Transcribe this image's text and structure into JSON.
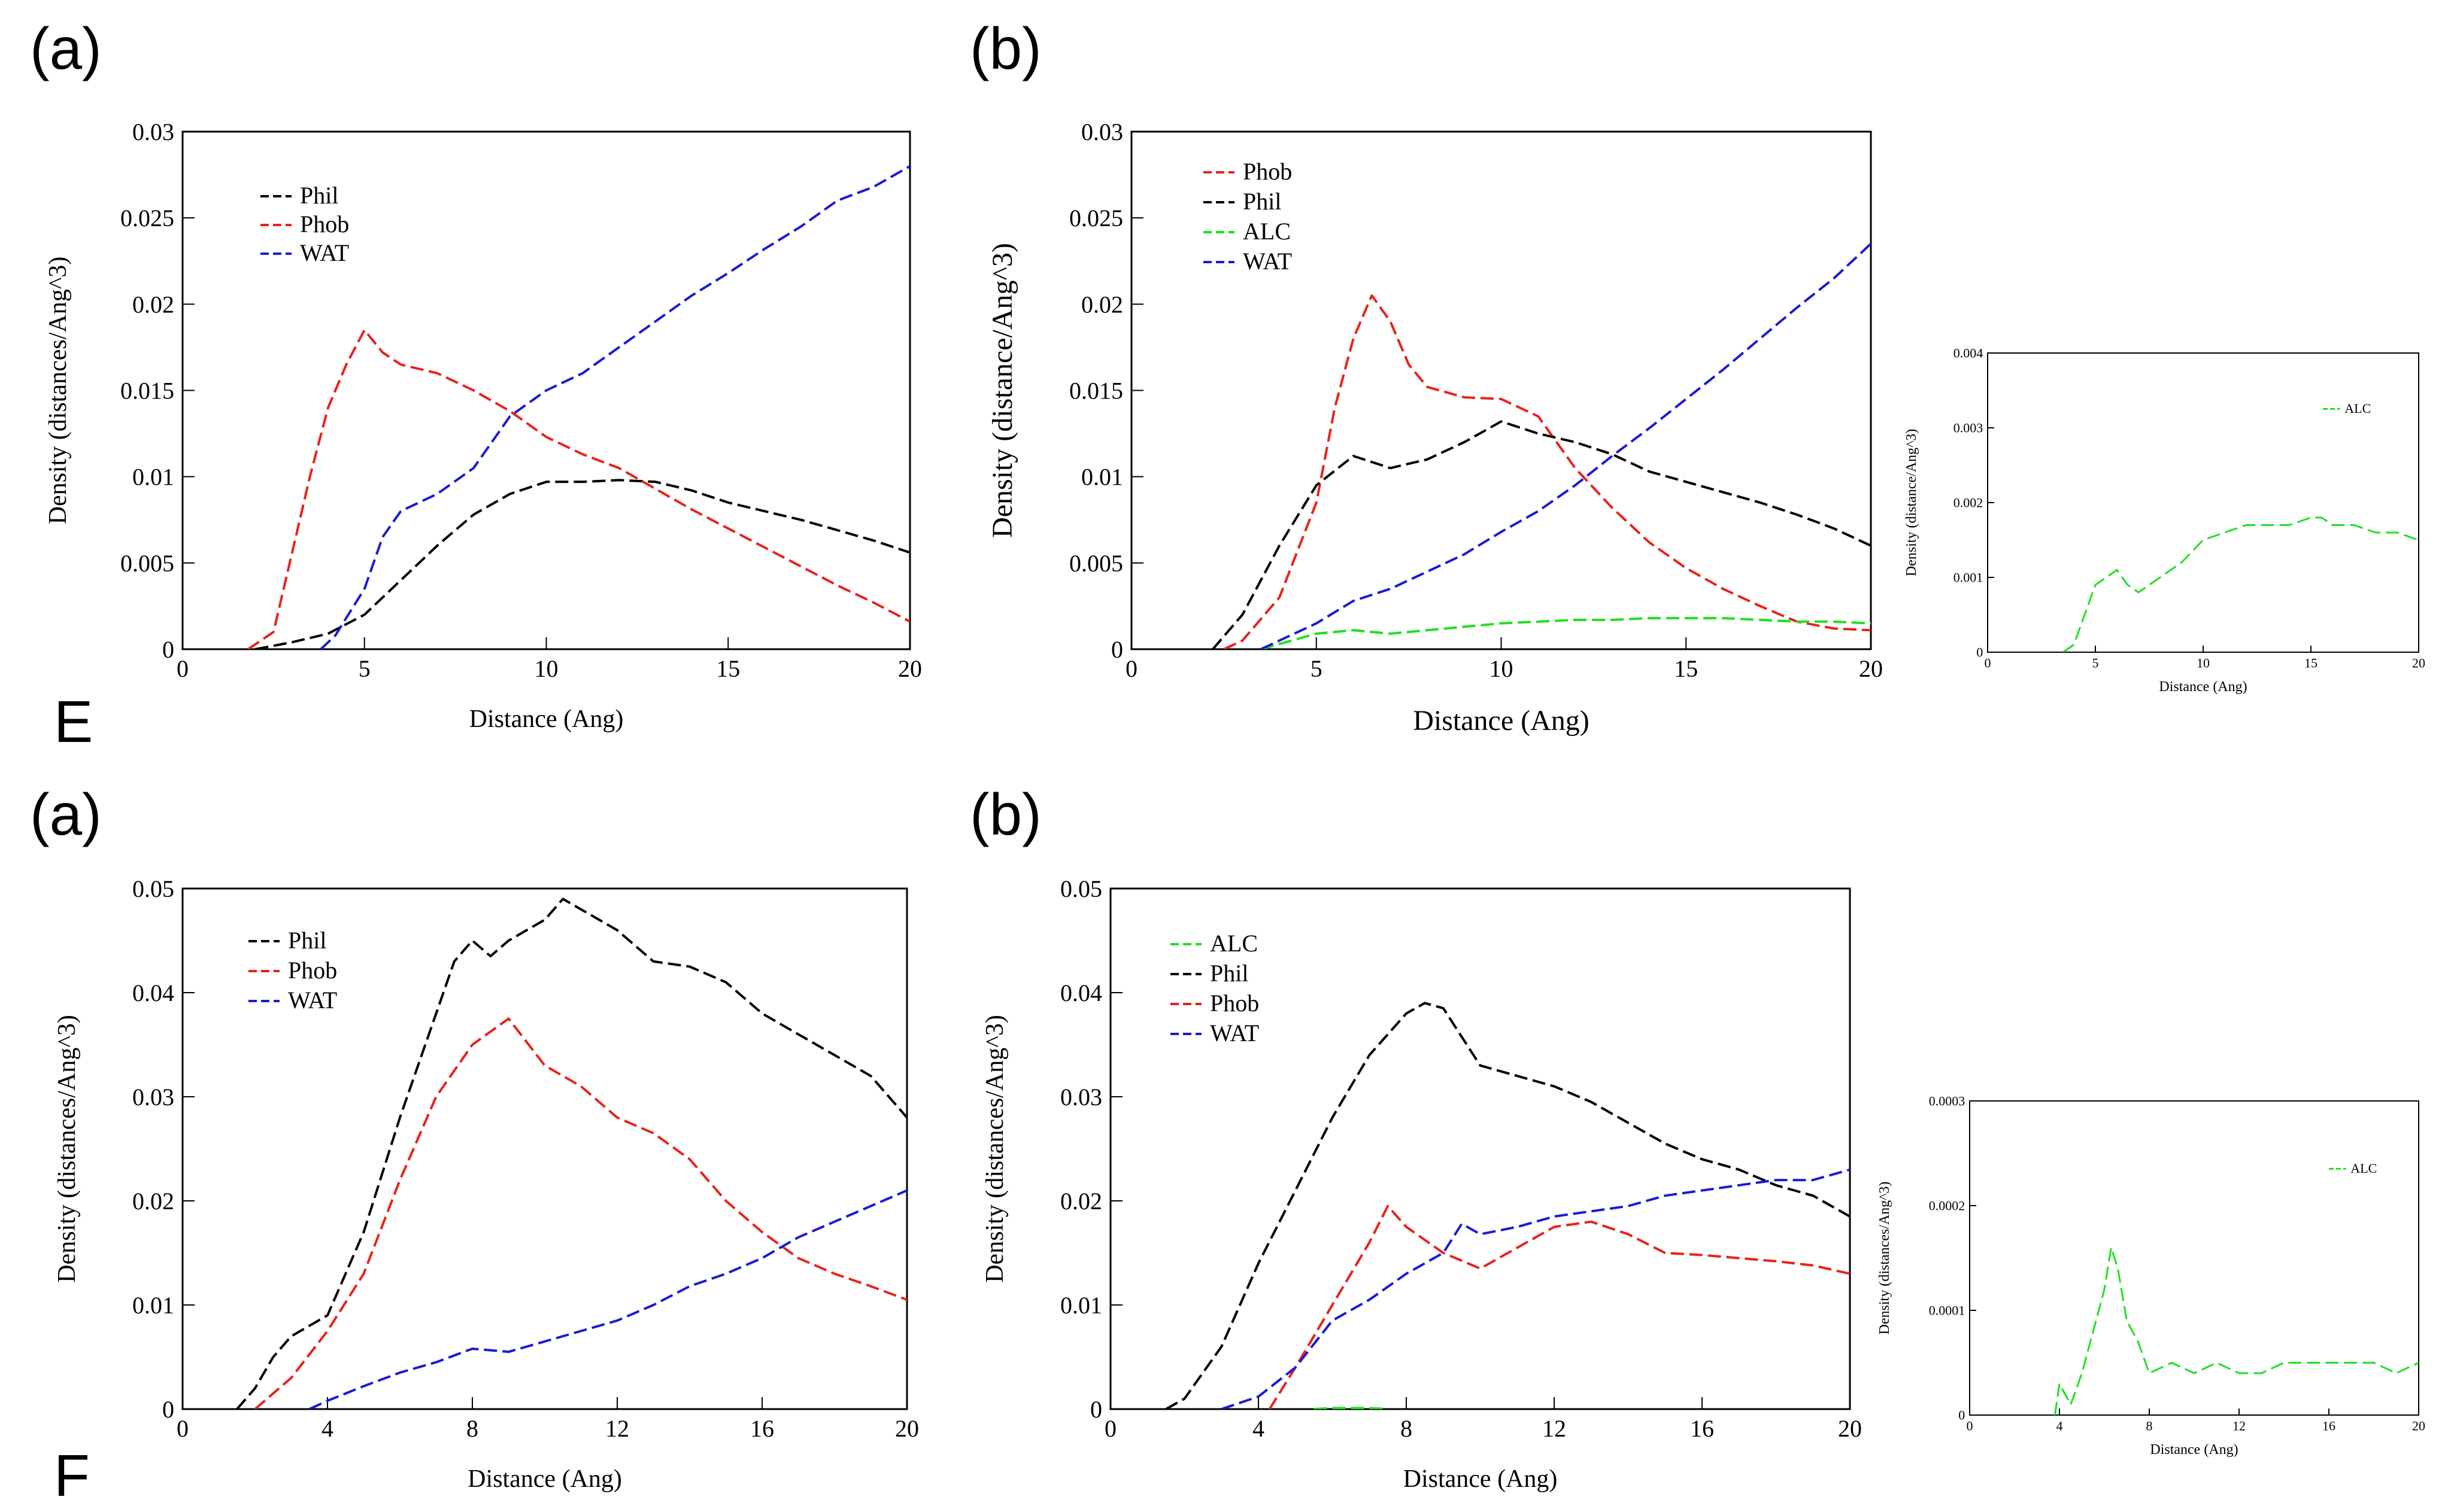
{
  "panel_labels": {
    "row1_a": "(a)",
    "row1_b": "(b)",
    "row1_tag": "E",
    "row2_a": "(a)",
    "row2_b": "(b)",
    "row2_tag": "F"
  },
  "colors": {
    "Phil": "#000000",
    "Phob": "#e8221b",
    "WAT": "#1a1ad6",
    "ALC": "#1fe01f"
  },
  "chart_data": [
    {
      "id": "E-a",
      "type": "line",
      "xlabel": "Distance (Ang)",
      "ylabel": "Density (distances/Ang^3)",
      "xlim": [
        0,
        20
      ],
      "ylim": [
        0,
        0.03
      ],
      "xticks": [
        "0",
        "5",
        "10",
        "15",
        "20"
      ],
      "yticks": [
        "0",
        "0.005",
        "0.01",
        "0.015",
        "0.02",
        "0.025",
        "0.03"
      ],
      "legend": [
        "Phil",
        "Phob",
        "WAT"
      ],
      "series": [
        {
          "name": "Phil",
          "x": [
            2,
            3,
            4,
            5,
            6,
            7,
            8,
            9,
            10,
            11,
            12,
            13,
            14,
            15,
            16,
            17,
            18,
            19,
            20
          ],
          "y": [
            0,
            0.0004,
            0.0009,
            0.002,
            0.004,
            0.006,
            0.0078,
            0.009,
            0.0097,
            0.0097,
            0.0098,
            0.0097,
            0.0092,
            0.0085,
            0.008,
            0.0075,
            0.0069,
            0.0063,
            0.0056
          ]
        },
        {
          "name": "Phob",
          "x": [
            1.8,
            2.5,
            3,
            3.5,
            4,
            4.5,
            5,
            5.5,
            6,
            7,
            8,
            9,
            10,
            11,
            12,
            13,
            14,
            15,
            16,
            17,
            18,
            19,
            20
          ],
          "y": [
            0,
            0.001,
            0.0055,
            0.01,
            0.014,
            0.0165,
            0.0185,
            0.0172,
            0.0165,
            0.016,
            0.015,
            0.0138,
            0.0123,
            0.0113,
            0.0105,
            0.0093,
            0.0081,
            0.007,
            0.0059,
            0.0048,
            0.0037,
            0.0027,
            0.0016
          ]
        },
        {
          "name": "WAT",
          "x": [
            3.8,
            4.2,
            5,
            5.5,
            6,
            7,
            8,
            9,
            10,
            11,
            12,
            13,
            14,
            15,
            16,
            17,
            18,
            19,
            20
          ],
          "y": [
            0,
            0.0008,
            0.0035,
            0.0065,
            0.008,
            0.009,
            0.0105,
            0.0135,
            0.015,
            0.016,
            0.0175,
            0.019,
            0.0205,
            0.0218,
            0.0232,
            0.0245,
            0.026,
            0.0268,
            0.028
          ]
        }
      ]
    },
    {
      "id": "E-b",
      "type": "line",
      "xlabel": "Distance (Ang)",
      "ylabel": "Density (distance/Ang^3)",
      "xlim": [
        0,
        20
      ],
      "ylim": [
        0,
        0.03
      ],
      "xticks": [
        "0",
        "5",
        "10",
        "15",
        "20"
      ],
      "yticks": [
        "0",
        "0.005",
        "0.01",
        "0.015",
        "0.02",
        "0.025",
        "0.03"
      ],
      "legend": [
        "Phob",
        "Phil",
        "ALC",
        "WAT"
      ],
      "series": [
        {
          "name": "Phob",
          "x": [
            2.5,
            3,
            4,
            5,
            5.5,
            6,
            6.5,
            7,
            7.5,
            8,
            9,
            10,
            11,
            12,
            13,
            14,
            15,
            16,
            17,
            18,
            19,
            20
          ],
          "y": [
            0,
            0.0005,
            0.003,
            0.0085,
            0.014,
            0.018,
            0.0205,
            0.019,
            0.0165,
            0.0152,
            0.0146,
            0.0145,
            0.0135,
            0.0105,
            0.0082,
            0.0062,
            0.0047,
            0.0035,
            0.0025,
            0.0016,
            0.0012,
            0.0011
          ]
        },
        {
          "name": "Phil",
          "x": [
            2.2,
            3,
            4,
            5,
            6,
            7,
            8,
            9,
            10,
            11,
            12,
            13,
            14,
            15,
            16,
            17,
            18,
            19,
            20
          ],
          "y": [
            0,
            0.002,
            0.006,
            0.0095,
            0.0112,
            0.0105,
            0.011,
            0.012,
            0.0132,
            0.0125,
            0.012,
            0.0113,
            0.0103,
            0.0097,
            0.0091,
            0.0085,
            0.0078,
            0.007,
            0.006
          ]
        },
        {
          "name": "ALC",
          "x": [
            3.5,
            4,
            5,
            6,
            7,
            8,
            9,
            10,
            11,
            12,
            13,
            14,
            15,
            16,
            17,
            18,
            19,
            20
          ],
          "y": [
            0,
            0.0003,
            0.0009,
            0.0011,
            0.0009,
            0.0011,
            0.0013,
            0.0015,
            0.0016,
            0.0017,
            0.0017,
            0.0018,
            0.0018,
            0.0018,
            0.0017,
            0.0016,
            0.0016,
            0.0015
          ]
        },
        {
          "name": "WAT",
          "x": [
            3.5,
            4,
            5,
            6,
            7,
            8,
            9,
            10,
            11,
            12,
            13,
            14,
            15,
            16,
            17,
            18,
            19,
            20
          ],
          "y": [
            0,
            0.0005,
            0.0015,
            0.0028,
            0.0035,
            0.0045,
            0.0055,
            0.0068,
            0.008,
            0.0095,
            0.0112,
            0.0128,
            0.0145,
            0.0162,
            0.018,
            0.0198,
            0.0215,
            0.0235
          ]
        }
      ]
    },
    {
      "id": "E-inset",
      "type": "line",
      "xlabel": "Distance (Ang)",
      "ylabel": "Density (distance/Ang^3)",
      "xlim": [
        0,
        20
      ],
      "ylim": [
        0,
        0.004
      ],
      "xticks": [
        "0",
        "5",
        "10",
        "15",
        "20"
      ],
      "yticks": [
        "0",
        "0.001",
        "0.002",
        "0.003",
        "0.004"
      ],
      "legend": [
        "ALC"
      ],
      "series": [
        {
          "name": "ALC",
          "x": [
            3.5,
            4,
            4.5,
            5,
            5.5,
            6,
            6.5,
            7,
            8,
            9,
            10,
            11,
            12,
            13,
            14,
            15,
            15.5,
            16,
            17,
            18,
            19,
            20
          ],
          "y": [
            0,
            0.0001,
            0.0005,
            0.0009,
            0.001,
            0.0011,
            0.0009,
            0.0008,
            0.001,
            0.0012,
            0.0015,
            0.0016,
            0.0017,
            0.0017,
            0.0017,
            0.0018,
            0.0018,
            0.0017,
            0.0017,
            0.0016,
            0.0016,
            0.0015
          ]
        }
      ]
    },
    {
      "id": "F-a",
      "type": "line",
      "xlabel": "Distance (Ang)",
      "ylabel": "Density (distances/Ang^3)",
      "xlim": [
        0,
        20
      ],
      "ylim": [
        0,
        0.05
      ],
      "xticks": [
        "0",
        "4",
        "8",
        "12",
        "16",
        "20"
      ],
      "yticks": [
        "0",
        "0.01",
        "0.02",
        "0.03",
        "0.04",
        "0.05"
      ],
      "legend": [
        "Phil",
        "Phob",
        "WAT"
      ],
      "series": [
        {
          "name": "Phil",
          "x": [
            1.5,
            2,
            2.5,
            3,
            4,
            5,
            6,
            7,
            7.5,
            8,
            8.5,
            9,
            10,
            10.5,
            11,
            12,
            13,
            14,
            15,
            16,
            17,
            18,
            19,
            20
          ],
          "y": [
            0,
            0.002,
            0.005,
            0.007,
            0.009,
            0.017,
            0.028,
            0.038,
            0.043,
            0.045,
            0.0435,
            0.045,
            0.047,
            0.049,
            0.048,
            0.046,
            0.043,
            0.0425,
            0.041,
            0.038,
            0.036,
            0.034,
            0.032,
            0.028
          ]
        },
        {
          "name": "Phob",
          "x": [
            2,
            3,
            4,
            5,
            6,
            7,
            8,
            9,
            10,
            11,
            12,
            13,
            14,
            15,
            16,
            17,
            18,
            19,
            20
          ],
          "y": [
            0,
            0.003,
            0.0075,
            0.013,
            0.022,
            0.03,
            0.035,
            0.0375,
            0.033,
            0.031,
            0.028,
            0.0265,
            0.024,
            0.02,
            0.017,
            0.0145,
            0.013,
            0.0118,
            0.0105
          ]
        },
        {
          "name": "WAT",
          "x": [
            3.5,
            4,
            5,
            6,
            7,
            8,
            9,
            10,
            11,
            12,
            13,
            14,
            15,
            16,
            17,
            18,
            19,
            20
          ],
          "y": [
            0,
            0.0008,
            0.0022,
            0.0035,
            0.0045,
            0.0058,
            0.0055,
            0.0065,
            0.0075,
            0.0085,
            0.01,
            0.0118,
            0.013,
            0.0145,
            0.0165,
            0.018,
            0.0195,
            0.021
          ]
        }
      ]
    },
    {
      "id": "F-b",
      "type": "line",
      "xlabel": "Distance (Ang)",
      "ylabel": "Density (distances/Ang^3)",
      "xlim": [
        0,
        20
      ],
      "ylim": [
        0,
        0.05
      ],
      "xticks": [
        "0",
        "4",
        "8",
        "12",
        "16",
        "20"
      ],
      "yticks": [
        "0",
        "0.01",
        "0.02",
        "0.03",
        "0.04",
        "0.05"
      ],
      "legend": [
        "ALC",
        "Phil",
        "Phob",
        "WAT"
      ],
      "series": [
        {
          "name": "ALC",
          "x": [
            5.5,
            6,
            7,
            7.5
          ],
          "y": [
            0,
            0.0001,
            0.0001,
            0
          ]
        },
        {
          "name": "Phil",
          "x": [
            1.5,
            2,
            3,
            4,
            5,
            6,
            7,
            8,
            8.5,
            9,
            10,
            11,
            12,
            13,
            14,
            15,
            16,
            17,
            18,
            19,
            20
          ],
          "y": [
            0,
            0.001,
            0.006,
            0.014,
            0.021,
            0.028,
            0.034,
            0.038,
            0.039,
            0.0385,
            0.033,
            0.032,
            0.031,
            0.0295,
            0.0275,
            0.0255,
            0.024,
            0.023,
            0.0215,
            0.0205,
            0.0185
          ]
        },
        {
          "name": "Phob",
          "x": [
            4.3,
            5,
            6,
            7,
            7.5,
            8,
            9,
            10,
            11,
            12,
            13,
            14,
            15,
            16,
            17,
            18,
            19,
            20
          ],
          "y": [
            0,
            0.004,
            0.01,
            0.016,
            0.0195,
            0.0175,
            0.015,
            0.0135,
            0.0155,
            0.0175,
            0.018,
            0.0168,
            0.015,
            0.0148,
            0.0145,
            0.0142,
            0.0138,
            0.013
          ]
        },
        {
          "name": "WAT",
          "x": [
            3,
            4,
            5,
            6,
            7,
            8,
            9,
            9.5,
            10,
            11,
            12,
            13,
            14,
            15,
            16,
            17,
            18,
            19,
            20
          ],
          "y": [
            0,
            0.0012,
            0.004,
            0.0085,
            0.0105,
            0.013,
            0.015,
            0.0178,
            0.0168,
            0.0175,
            0.0185,
            0.019,
            0.0195,
            0.0205,
            0.021,
            0.0215,
            0.022,
            0.022,
            0.023
          ]
        }
      ]
    },
    {
      "id": "F-inset",
      "type": "line",
      "xlabel": "Distance (Ang)",
      "ylabel": "Density (distances/Ang^3)",
      "xlim": [
        0,
        20
      ],
      "ylim": [
        0,
        0.0003
      ],
      "xticks": [
        "0",
        "4",
        "8",
        "12",
        "16",
        "20"
      ],
      "yticks": [
        "0",
        "0.0001",
        "0.0002",
        "0.0003"
      ],
      "legend": [
        "ALC"
      ],
      "series": [
        {
          "name": "ALC",
          "x": [
            3.8,
            4,
            4.5,
            5,
            5.5,
            6,
            6.3,
            6.6,
            7,
            7.5,
            8,
            9,
            10,
            11,
            12,
            13,
            14,
            15,
            16,
            17,
            18,
            19,
            20
          ],
          "y": [
            0,
            3e-05,
            1e-05,
            4e-05,
            8e-05,
            0.00012,
            0.00016,
            0.00014,
            9e-05,
            7e-05,
            4e-05,
            5e-05,
            4e-05,
            5e-05,
            4e-05,
            4e-05,
            5e-05,
            5e-05,
            5e-05,
            5e-05,
            5e-05,
            4e-05,
            5e-05
          ]
        }
      ]
    }
  ]
}
